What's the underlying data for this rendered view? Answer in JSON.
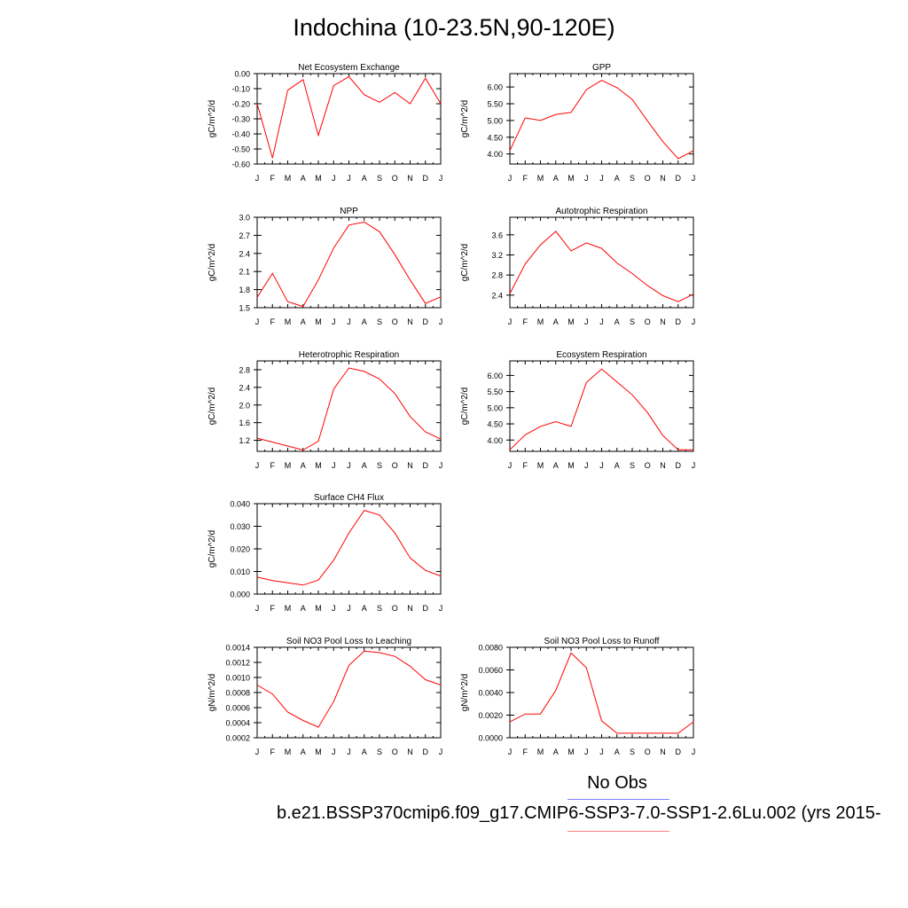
{
  "figure": {
    "title": "Indochina (10-23.5N,90-120E)",
    "legend_label": "No Obs",
    "case_label": "b.e21.BSSP370cmip6.f09_g17.CMIP6-SSP3-7.0-SSP1-2.6Lu.002 (yrs 2015-",
    "colors": {
      "line": "#ff0000",
      "axis": "#000000",
      "legend_top": "#8080ff",
      "legend_bottom": "#ff8080"
    }
  },
  "chart_data": [
    {
      "type": "line",
      "title": "Net Ecosystem Exchange",
      "ylabel": "gC/m^2/d",
      "categories": [
        "J",
        "F",
        "M",
        "A",
        "M",
        "J",
        "J",
        "A",
        "S",
        "O",
        "N",
        "D",
        "J"
      ],
      "yticks": [
        "0.00",
        "-0.10",
        "-0.20",
        "-0.30",
        "-0.40",
        "-0.50",
        "-0.60"
      ],
      "ytick_values": [
        0.0,
        -0.1,
        -0.2,
        -0.3,
        -0.4,
        -0.5,
        -0.6
      ],
      "ylim": [
        -0.6,
        0.0
      ],
      "values": [
        -0.2,
        -0.56,
        -0.11,
        -0.04,
        -0.41,
        -0.08,
        -0.02,
        -0.14,
        -0.19,
        -0.125,
        -0.2,
        -0.03,
        -0.2
      ]
    },
    {
      "type": "line",
      "title": "GPP",
      "ylabel": "gC/m^2/d",
      "categories": [
        "J",
        "F",
        "M",
        "A",
        "M",
        "J",
        "J",
        "A",
        "S",
        "O",
        "N",
        "D",
        "J"
      ],
      "yticks": [
        "6.00",
        "5.50",
        "5.00",
        "4.50",
        "4.00"
      ],
      "ytick_values": [
        6.0,
        5.5,
        5.0,
        4.5,
        4.0
      ],
      "ylim": [
        3.7,
        6.4
      ],
      "values": [
        4.1,
        5.08,
        5.0,
        5.18,
        5.24,
        5.92,
        6.2,
        5.98,
        5.63,
        4.98,
        4.37,
        3.86,
        4.1
      ]
    },
    {
      "type": "line",
      "title": "NPP",
      "ylabel": "gC/m^2/d",
      "categories": [
        "J",
        "F",
        "M",
        "A",
        "M",
        "J",
        "J",
        "A",
        "S",
        "O",
        "N",
        "D",
        "J"
      ],
      "yticks": [
        "3.0",
        "2.7",
        "2.4",
        "2.1",
        "1.8",
        "1.5"
      ],
      "ytick_values": [
        3.0,
        2.7,
        2.4,
        2.1,
        1.8,
        1.5
      ],
      "ylim": [
        1.5,
        3.0
      ],
      "values": [
        1.67,
        2.07,
        1.6,
        1.52,
        1.96,
        2.49,
        2.87,
        2.92,
        2.76,
        2.38,
        1.96,
        1.57,
        1.68
      ]
    },
    {
      "type": "line",
      "title": "Autotrophic Respiration",
      "ylabel": "gC/m^2/d",
      "categories": [
        "J",
        "F",
        "M",
        "A",
        "M",
        "J",
        "J",
        "A",
        "S",
        "O",
        "N",
        "D",
        "J"
      ],
      "yticks": [
        "3.6",
        "3.2",
        "2.8",
        "2.4"
      ],
      "ytick_values": [
        3.6,
        3.2,
        2.8,
        2.4
      ],
      "ylim": [
        2.15,
        3.95
      ],
      "values": [
        2.43,
        3.02,
        3.4,
        3.67,
        3.28,
        3.44,
        3.33,
        3.04,
        2.83,
        2.59,
        2.39,
        2.27,
        2.42
      ]
    },
    {
      "type": "line",
      "title": "Heterotrophic Respiration",
      "ylabel": "gC/m^2/d",
      "categories": [
        "J",
        "F",
        "M",
        "A",
        "M",
        "J",
        "J",
        "A",
        "S",
        "O",
        "N",
        "D",
        "J"
      ],
      "yticks": [
        "2.8",
        "2.4",
        "2.0",
        "1.6",
        "1.2"
      ],
      "ytick_values": [
        2.8,
        2.4,
        2.0,
        1.6,
        1.2
      ],
      "ylim": [
        0.95,
        3.0
      ],
      "values": [
        1.25,
        1.16,
        1.07,
        0.98,
        1.18,
        2.36,
        2.84,
        2.76,
        2.59,
        2.26,
        1.74,
        1.39,
        1.23
      ]
    },
    {
      "type": "line",
      "title": "Ecosystem Respiration",
      "ylabel": "gC/m^2/d",
      "categories": [
        "J",
        "F",
        "M",
        "A",
        "M",
        "J",
        "J",
        "A",
        "S",
        "O",
        "N",
        "D",
        "J"
      ],
      "yticks": [
        "6.00",
        "5.50",
        "5.00",
        "4.50",
        "4.00"
      ],
      "ytick_values": [
        6.0,
        5.5,
        5.0,
        4.5,
        4.0
      ],
      "ylim": [
        3.65,
        6.45
      ],
      "values": [
        3.7,
        4.16,
        4.42,
        4.57,
        4.42,
        5.78,
        6.2,
        5.8,
        5.4,
        4.85,
        4.14,
        3.7,
        3.7
      ]
    },
    {
      "type": "line",
      "title": "Surface CH4 Flux",
      "ylabel": "gC/m^2/d",
      "categories": [
        "J",
        "F",
        "M",
        "A",
        "M",
        "J",
        "J",
        "A",
        "S",
        "O",
        "N",
        "D",
        "J"
      ],
      "yticks": [
        "0.040",
        "0.030",
        "0.020",
        "0.010",
        "0.000"
      ],
      "ytick_values": [
        0.04,
        0.03,
        0.02,
        0.01,
        0.0
      ],
      "ylim": [
        0.0,
        0.04
      ],
      "values": [
        0.0075,
        0.006,
        0.005,
        0.004,
        0.0062,
        0.015,
        0.027,
        0.037,
        0.035,
        0.027,
        0.016,
        0.0105,
        0.008
      ]
    },
    {
      "type": "line",
      "title": "Soil NO3 Pool Loss to Leaching",
      "ylabel": "gN/m^2/d",
      "categories": [
        "J",
        "F",
        "M",
        "A",
        "M",
        "J",
        "J",
        "A",
        "S",
        "O",
        "N",
        "D",
        "J"
      ],
      "yticks": [
        "0.0014",
        "0.0012",
        "0.0010",
        "0.0008",
        "0.0006",
        "0.0004",
        "0.0002"
      ],
      "ytick_values": [
        0.0014,
        0.0012,
        0.001,
        0.0008,
        0.0006,
        0.0004,
        0.0002
      ],
      "ylim": [
        0.0002,
        0.0014
      ],
      "values": [
        0.0009,
        0.00078,
        0.00054,
        0.00043,
        0.00034,
        0.00068,
        0.00116,
        0.00135,
        0.00133,
        0.00128,
        0.00115,
        0.00097,
        0.0009
      ]
    },
    {
      "type": "line",
      "title": "Soil NO3 Pool Loss to Runoff",
      "ylabel": "gN/m^2/d",
      "categories": [
        "J",
        "F",
        "M",
        "A",
        "M",
        "J",
        "J",
        "A",
        "S",
        "O",
        "N",
        "D",
        "J"
      ],
      "yticks": [
        "0.0080",
        "0.0060",
        "0.0040",
        "0.0020",
        "0.0000"
      ],
      "ytick_values": [
        0.008,
        0.006,
        0.004,
        0.002,
        0.0
      ],
      "ylim": [
        0.0,
        0.008
      ],
      "values": [
        0.0014,
        0.0021,
        0.0021,
        0.0042,
        0.0075,
        0.0062,
        0.0015,
        0.0004,
        0.0004,
        0.0004,
        0.0004,
        0.0004,
        0.0014
      ]
    }
  ]
}
